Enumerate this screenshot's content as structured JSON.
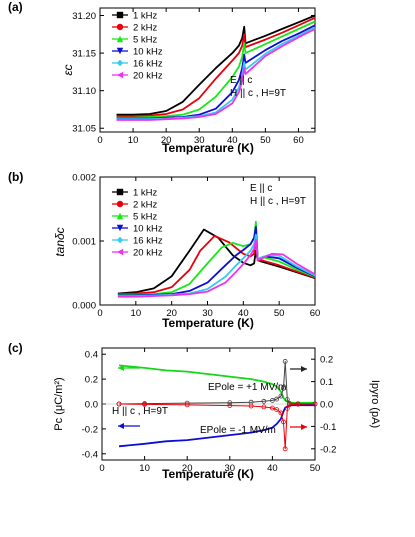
{
  "chart_data": [
    {
      "panel_label": "(a)",
      "type": "line",
      "xlabel": "Temperature (K)",
      "ylabel": "εc",
      "xlim": [
        0,
        65
      ],
      "ylim": [
        31.045,
        31.21
      ],
      "xticks": [
        "0",
        "10",
        "20",
        "30",
        "40",
        "50",
        "60"
      ],
      "yticks": [
        "31.05",
        "31.10",
        "31.15",
        "31.20"
      ],
      "annotations": [
        "E || c",
        "H || c , H=9T"
      ],
      "legend_position": "top-left",
      "series": [
        {
          "name": "1 kHz",
          "color": "#000000",
          "marker": "square",
          "x": [
            5,
            10,
            15,
            20,
            25,
            30,
            35,
            40,
            42,
            43,
            43.6,
            44,
            50,
            55,
            60,
            65
          ],
          "y": [
            31.068,
            31.068,
            31.069,
            31.073,
            31.085,
            31.108,
            31.13,
            31.15,
            31.16,
            31.17,
            31.185,
            31.163,
            31.173,
            31.182,
            31.191,
            31.2
          ]
        },
        {
          "name": "2 kHz",
          "color": "#e8000b",
          "marker": "circle",
          "x": [
            5,
            10,
            15,
            20,
            25,
            30,
            35,
            40,
            42,
            43,
            43.6,
            44,
            50,
            55,
            60,
            65
          ],
          "y": [
            31.066,
            31.066,
            31.067,
            31.069,
            31.075,
            31.09,
            31.116,
            31.14,
            31.15,
            31.16,
            31.175,
            31.158,
            31.168,
            31.177,
            31.187,
            31.197
          ]
        },
        {
          "name": "5 kHz",
          "color": "#17e817",
          "marker": "triangle-up",
          "x": [
            5,
            10,
            15,
            20,
            25,
            30,
            35,
            40,
            42,
            43,
            43.6,
            44,
            50,
            55,
            60,
            65
          ],
          "y": [
            31.064,
            31.064,
            31.065,
            31.066,
            31.068,
            31.075,
            31.092,
            31.118,
            31.132,
            31.145,
            31.163,
            31.15,
            31.162,
            31.172,
            31.182,
            31.192
          ]
        },
        {
          "name": "10 kHz",
          "color": "#0d0dd6",
          "marker": "triangle-down",
          "x": [
            5,
            10,
            15,
            20,
            25,
            30,
            35,
            40,
            42,
            43,
            43.6,
            44,
            50,
            55,
            60,
            65
          ],
          "y": [
            31.063,
            31.063,
            31.063,
            31.064,
            31.065,
            31.068,
            31.076,
            31.098,
            31.114,
            31.13,
            31.148,
            31.137,
            31.154,
            31.166,
            31.176,
            31.187
          ]
        },
        {
          "name": "16 kHz",
          "color": "#33ccee",
          "marker": "diamond",
          "x": [
            5,
            10,
            15,
            20,
            25,
            30,
            35,
            40,
            42,
            43,
            43.6,
            44,
            50,
            55,
            60,
            65
          ],
          "y": [
            31.062,
            31.062,
            31.062,
            31.063,
            31.064,
            31.066,
            31.071,
            31.088,
            31.104,
            31.12,
            31.138,
            31.128,
            31.149,
            31.162,
            31.173,
            31.184
          ]
        },
        {
          "name": "20 kHz",
          "color": "#ee33ee",
          "marker": "triangle-left",
          "x": [
            5,
            10,
            15,
            20,
            25,
            30,
            35,
            40,
            42,
            43,
            43.6,
            44,
            50,
            55,
            60,
            65
          ],
          "y": [
            31.061,
            31.061,
            31.061,
            31.062,
            31.063,
            31.065,
            31.069,
            31.083,
            31.098,
            31.113,
            31.13,
            31.122,
            31.146,
            31.159,
            31.171,
            31.182
          ]
        }
      ]
    },
    {
      "panel_label": "(b)",
      "type": "line",
      "xlabel": "Temperature (K)",
      "ylabel": "tanδc",
      "xlim": [
        0,
        60
      ],
      "ylim": [
        0,
        0.002
      ],
      "xticks": [
        "0",
        "10",
        "20",
        "30",
        "40",
        "50",
        "60"
      ],
      "yticks": [
        "0.000",
        "0.001",
        "0.002"
      ],
      "annotations": [
        "E || c",
        "H || c , H=9T"
      ],
      "legend_position": "top-left",
      "series": [
        {
          "name": "1 kHz",
          "color": "#000000",
          "marker": "square",
          "x": [
            5,
            10,
            15,
            20,
            25,
            29,
            33,
            37,
            40,
            42,
            43,
            43.5,
            44,
            45,
            50,
            55,
            60
          ],
          "y": [
            0.00018,
            0.0002,
            0.00026,
            0.00045,
            0.00085,
            0.00118,
            0.00105,
            0.00078,
            0.00066,
            0.00062,
            0.00065,
            0.00085,
            0.0007,
            0.00068,
            0.0006,
            0.00051,
            0.00042
          ]
        },
        {
          "name": "2 kHz",
          "color": "#e8000b",
          "marker": "circle",
          "x": [
            5,
            10,
            15,
            20,
            25,
            28,
            32,
            36,
            40,
            42,
            43,
            43.5,
            44,
            45,
            50,
            55,
            60
          ],
          "y": [
            0.00017,
            0.00018,
            0.0002,
            0.00028,
            0.00055,
            0.00085,
            0.00108,
            0.00098,
            0.0008,
            0.00076,
            0.0008,
            0.00105,
            0.0007,
            0.0007,
            0.00062,
            0.00052,
            0.00043
          ]
        },
        {
          "name": "5 kHz",
          "color": "#17e817",
          "marker": "triangle-up",
          "x": [
            5,
            10,
            15,
            20,
            25,
            30,
            34,
            37,
            40,
            42,
            43,
            43.5,
            44,
            46,
            50,
            55,
            60
          ],
          "y": [
            0.00016,
            0.00016,
            0.00017,
            0.0002,
            0.00033,
            0.00065,
            0.0009,
            0.00097,
            0.00092,
            0.00095,
            0.00105,
            0.0013,
            0.00072,
            0.00074,
            0.00068,
            0.00055,
            0.00044
          ]
        },
        {
          "name": "10 kHz",
          "color": "#0d0dd6",
          "marker": "triangle-down",
          "x": [
            5,
            10,
            15,
            20,
            25,
            30,
            35,
            38,
            40,
            42,
            43,
            43.5,
            44,
            46,
            50,
            55,
            60
          ],
          "y": [
            0.00015,
            0.00015,
            0.00016,
            0.00017,
            0.00022,
            0.00035,
            0.00062,
            0.00078,
            0.00086,
            0.00095,
            0.00105,
            0.00122,
            0.00072,
            0.00076,
            0.00073,
            0.00058,
            0.00045
          ]
        },
        {
          "name": "16 kHz",
          "color": "#33ccee",
          "marker": "diamond",
          "x": [
            5,
            10,
            15,
            20,
            25,
            30,
            35,
            38,
            40,
            42,
            43,
            43.5,
            44,
            47,
            50,
            55,
            60
          ],
          "y": [
            0.00014,
            0.00014,
            0.00015,
            0.00016,
            0.00018,
            0.00025,
            0.00044,
            0.00062,
            0.00073,
            0.00085,
            0.00095,
            0.0011,
            0.00072,
            0.00078,
            0.00077,
            0.0006,
            0.00046
          ]
        },
        {
          "name": "20 kHz",
          "color": "#ee33ee",
          "marker": "triangle-left",
          "x": [
            5,
            10,
            15,
            20,
            25,
            30,
            35,
            38,
            40,
            42,
            43,
            43.5,
            44,
            48,
            51,
            55,
            60
          ],
          "y": [
            0.00013,
            0.00013,
            0.00014,
            0.00015,
            0.00017,
            0.00021,
            0.00035,
            0.00052,
            0.00064,
            0.00078,
            0.00088,
            0.00102,
            0.0007,
            0.0008,
            0.00079,
            0.00064,
            0.00048
          ]
        }
      ]
    },
    {
      "panel_label": "(c)",
      "type": "line",
      "xlabel": "Temperature (K)",
      "ylabel": "Pc (μC/m²)",
      "y2label": "Ipyro (pA)",
      "xlim": [
        0,
        50
      ],
      "ylim": [
        -0.45,
        0.45
      ],
      "y2lim": [
        -0.25,
        0.25
      ],
      "xticks": [
        "0",
        "10",
        "20",
        "30",
        "40",
        "50"
      ],
      "yticks": [
        "-0.4",
        "-0.2",
        "0.0",
        "0.2",
        "0.4"
      ],
      "y2ticks": [
        "-0.2",
        "-0.1",
        "0.0",
        "0.1",
        "0.2"
      ],
      "annotations": [
        "H || c , H=9T",
        "EPole = +1 MV/m",
        "EPole = -1 MV/m"
      ],
      "series": [
        {
          "name": "Pc, EPole = +1 MV/m",
          "color": "#17d617",
          "axis": "left",
          "x": [
            4,
            10,
            15,
            20,
            25,
            30,
            35,
            38,
            40,
            41,
            42,
            42.6,
            43,
            44,
            50
          ],
          "y": [
            0.31,
            0.29,
            0.27,
            0.26,
            0.24,
            0.22,
            0.2,
            0.18,
            0.16,
            0.14,
            0.1,
            0.05,
            0.03,
            0.01,
            0.01
          ]
        },
        {
          "name": "Pc, EPole = -1 MV/m",
          "color": "#0d0dd6",
          "axis": "left",
          "x": [
            4,
            10,
            15,
            20,
            25,
            30,
            35,
            38,
            40,
            41,
            42,
            42.6,
            43,
            44,
            50
          ],
          "y": [
            -0.34,
            -0.32,
            -0.3,
            -0.29,
            -0.27,
            -0.25,
            -0.23,
            -0.21,
            -0.19,
            -0.16,
            -0.12,
            -0.06,
            -0.03,
            -0.01,
            -0.01
          ]
        },
        {
          "name": "Ipyro, EPole = +1 MV/m",
          "color": "#444444",
          "axis": "right",
          "marker": "circle-open",
          "x": [
            4,
            10,
            20,
            30,
            35,
            38,
            40,
            41,
            42,
            42.6,
            43,
            43.5,
            44,
            46,
            50
          ],
          "y": [
            0.0,
            0.002,
            0.004,
            0.006,
            0.008,
            0.012,
            0.016,
            0.022,
            0.035,
            0.07,
            0.19,
            0.02,
            0.003,
            0.001,
            0.0
          ]
        },
        {
          "name": "Ipyro, EPole = -1 MV/m",
          "color": "#e8000b",
          "axis": "right",
          "marker": "circle-open",
          "x": [
            4,
            10,
            20,
            30,
            35,
            38,
            40,
            41,
            42,
            42.6,
            43,
            43.5,
            44,
            46,
            50
          ],
          "y": [
            0.0,
            -0.002,
            -0.004,
            -0.007,
            -0.009,
            -0.013,
            -0.018,
            -0.025,
            -0.04,
            -0.08,
            -0.2,
            -0.02,
            -0.003,
            -0.001,
            0.0
          ]
        }
      ]
    }
  ],
  "marker_styles": {
    "1 kHz": "square",
    "2 kHz": "circle",
    "5 kHz": "triangle-up",
    "10 kHz": "triangle-down",
    "16 kHz": "diamond",
    "20 kHz": "triangle-left"
  }
}
